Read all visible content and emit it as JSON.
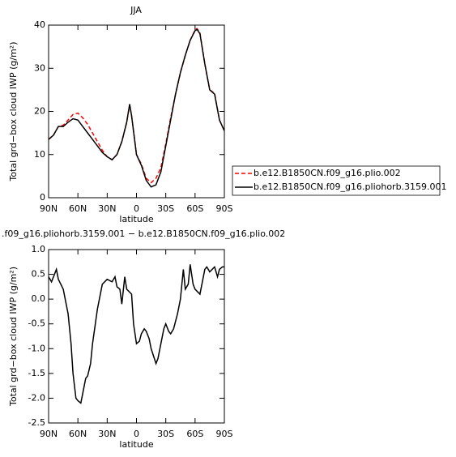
{
  "chart_data": [
    {
      "type": "line",
      "title": "JJA",
      "xlabel": "latitude",
      "ylabel": "Total grd−box cloud IWP (g/m²)",
      "x": [
        90,
        85,
        80,
        75,
        70,
        65,
        60,
        55,
        50,
        45,
        40,
        35,
        30,
        25,
        20,
        15,
        10,
        7,
        5,
        0,
        -5,
        -10,
        -15,
        -20,
        -25,
        -30,
        -35,
        -40,
        -45,
        -50,
        -55,
        -60,
        -62,
        -65,
        -70,
        -75,
        -80,
        -85,
        -90
      ],
      "series": [
        {
          "name": "b.e12.B1850CN.f09_g16.plio.002",
          "color": "#ff0000",
          "style": "dashed",
          "values": [
            13.5,
            14.5,
            16.5,
            16.8,
            18,
            19.3,
            19.6,
            18.5,
            17,
            15,
            13,
            11,
            9.5,
            8.8,
            10,
            13,
            17.5,
            21.5,
            19,
            10,
            7.8,
            4.5,
            3.5,
            4.5,
            7,
            12.5,
            18.5,
            24,
            29,
            33,
            36.5,
            38.9,
            39.2,
            38.2,
            31,
            25,
            24.2,
            18,
            15.5
          ]
        },
        {
          "name": "b.e12.B1850CN.f09_g16.pliohorb.3159.001",
          "color": "#000000",
          "style": "solid",
          "values": [
            13.5,
            14.5,
            16.5,
            16.5,
            17.5,
            18.3,
            18,
            16.5,
            15,
            13.5,
            12,
            10.5,
            9.5,
            8.8,
            10,
            13,
            17.5,
            21.7,
            19,
            10,
            7.5,
            4,
            2.5,
            3,
            6,
            12,
            18,
            24,
            29,
            33,
            36.5,
            38.7,
            39,
            38,
            31,
            25,
            24,
            18,
            15.5
          ]
        }
      ],
      "xlim": [
        90,
        -90
      ],
      "ylim": [
        0,
        40
      ],
      "xticks": [
        {
          "value": 90,
          "label": "90N"
        },
        {
          "value": 60,
          "label": "60N"
        },
        {
          "value": 30,
          "label": "30N"
        },
        0,
        {
          "value": -30,
          "label": "30S"
        },
        {
          "value": -60,
          "label": "60S"
        },
        {
          "value": -90,
          "label": "90S"
        }
      ],
      "yticks": [
        0,
        10,
        20,
        30,
        40
      ]
    },
    {
      "type": "line",
      "title": ".f09_g16.pliohorb.3159.001 − b.e12.B1850CN.f09_g16.plio.002",
      "xlabel": "latitude",
      "ylabel": "Total grd−box cloud IWP (g/m²)",
      "x": [
        90,
        87,
        85,
        82,
        80,
        75,
        70,
        67,
        65,
        62,
        60,
        57,
        55,
        52,
        50,
        47,
        45,
        40,
        35,
        30,
        25,
        22,
        20,
        17,
        15,
        12,
        10,
        5,
        3,
        0,
        -3,
        -5,
        -8,
        -10,
        -13,
        -15,
        -20,
        -22,
        -25,
        -28,
        -30,
        -33,
        -35,
        -38,
        -42,
        -45,
        -48,
        -50,
        -53,
        -55,
        -58,
        -60,
        -65,
        -70,
        -72,
        -75,
        -80,
        -83,
        -85,
        -88,
        -90
      ],
      "color": "#000000",
      "values": [
        0.45,
        0.35,
        0.45,
        0.6,
        0.4,
        0.2,
        -0.3,
        -0.9,
        -1.5,
        -2.0,
        -2.05,
        -2.1,
        -1.9,
        -1.6,
        -1.55,
        -1.3,
        -0.9,
        -0.2,
        0.3,
        0.4,
        0.35,
        0.45,
        0.25,
        0.2,
        -0.1,
        0.45,
        0.2,
        0.1,
        -0.5,
        -0.9,
        -0.85,
        -0.7,
        -0.6,
        -0.65,
        -0.8,
        -1.0,
        -1.3,
        -1.2,
        -0.9,
        -0.6,
        -0.5,
        -0.65,
        -0.7,
        -0.6,
        -0.3,
        0.0,
        0.6,
        0.2,
        0.3,
        0.7,
        0.3,
        0.2,
        0.1,
        0.6,
        0.65,
        0.55,
        0.65,
        0.45,
        0.6,
        0.65,
        0.65
      ],
      "xlim": [
        90,
        -90
      ],
      "ylim": [
        -2.5,
        1
      ],
      "xticks": [
        {
          "value": 90,
          "label": "90N"
        },
        {
          "value": 60,
          "label": "60N"
        },
        {
          "value": 30,
          "label": "30N"
        },
        0,
        {
          "value": -30,
          "label": "30S"
        },
        {
          "value": -60,
          "label": "60S"
        },
        {
          "value": -90,
          "label": "90S"
        }
      ],
      "yticks": [
        {
          "value": 1,
          "label": "1.0"
        },
        0.5,
        {
          "value": 0,
          "label": "0.0"
        },
        -0.5,
        {
          "value": -1,
          "label": "-1.0"
        },
        -1.5,
        {
          "value": -2,
          "label": "-2.0"
        },
        -2.5
      ]
    }
  ]
}
